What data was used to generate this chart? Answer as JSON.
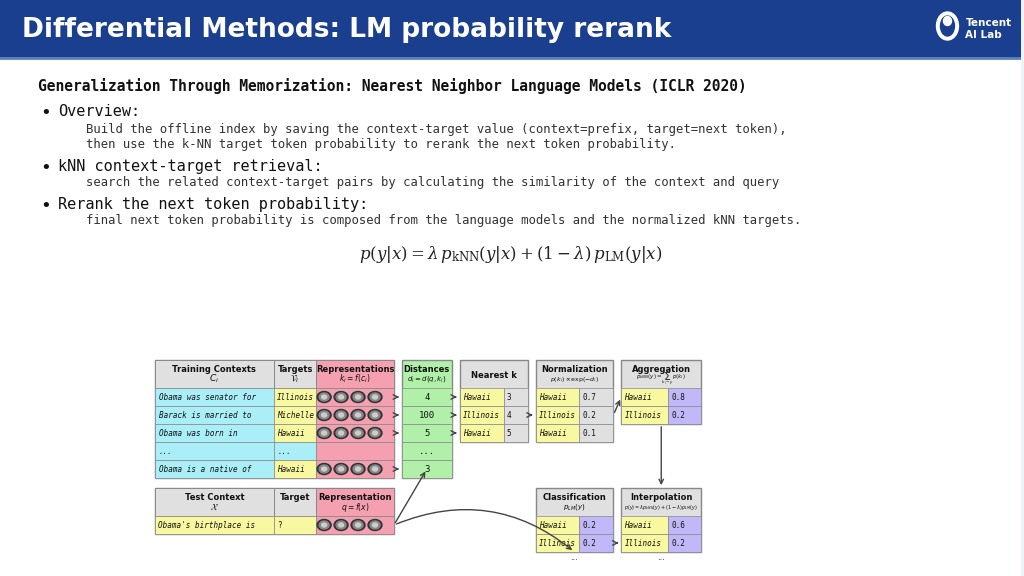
{
  "title": "Differential Methods: LM probability rerank",
  "title_bg": "#1a3f8f",
  "title_fg": "#ffffff",
  "slide_bg": "#f0f4f8",
  "slide_content_bg": "#ffffff",
  "heading": "Generalization Through Memorization: Nearest Neighbor Language Models (ICLR 2020)",
  "bullet1_bold": "Overview:",
  "bullet1_text1": "Build the offline index by saving the context-target value (context=prefix, target=next token),",
  "bullet1_text2": "then use the k-NN target token probability to rerank the next token probability.",
  "bullet2_bold": "kNN context-target retrieval:",
  "bullet2_text": "search the related context-target pairs by calculating the similarity of the context and query",
  "bullet3_bold": "Rerank the next token probability:",
  "bullet3_text": "final next token probability is composed from the language models and the normalized kNN targets.",
  "formula": "$p(y|x) = \\lambda\\, p_{\\mathrm{kNN}}(y|x) + (1-\\lambda)\\, p_{\\mathrm{LM}}(y|x)$",
  "col_cyan": "#aaeef8",
  "col_pink": "#f4a0b0",
  "col_green": "#b0f0a8",
  "col_yellow": "#f8f8a0",
  "col_purple": "#c0b8f8",
  "col_header": "#e0e0e0",
  "col_white": "#ffffff",
  "col_edge": "#888888"
}
